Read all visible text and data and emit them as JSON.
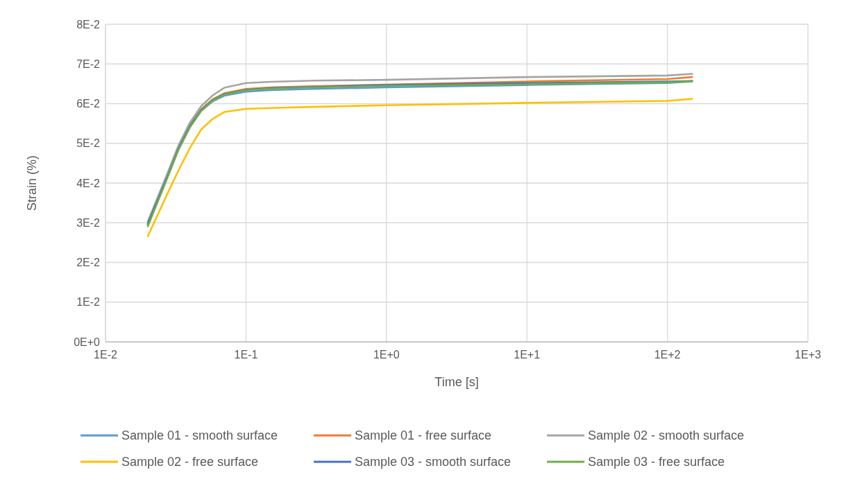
{
  "chart_data": {
    "type": "line",
    "xlabel": "Time [s]",
    "ylabel": "Strain (%)",
    "log": "x",
    "x": [
      0.02,
      0.028,
      0.033,
      0.04,
      0.048,
      0.058,
      0.07,
      0.1,
      0.15,
      0.3,
      1,
      10,
      100,
      150
    ],
    "series": [
      {
        "name": "Sample 01 - smooth surface",
        "color": "#5b9bd5",
        "values": [
          0.0295,
          0.0421,
          0.0485,
          0.0542,
          0.0582,
          0.0606,
          0.062,
          0.063,
          0.0634,
          0.0637,
          0.0641,
          0.0647,
          0.0652,
          0.0656
        ]
      },
      {
        "name": "Sample 01 - free surface",
        "color": "#ed7d31",
        "values": [
          null,
          null,
          null,
          0.0546,
          0.0586,
          0.0611,
          0.0626,
          0.0637,
          0.0641,
          0.0644,
          0.0648,
          0.0656,
          0.0662,
          0.0667
        ]
      },
      {
        "name": "Sample 02 - smooth surface",
        "color": "#a5a5a5",
        "values": [
          0.0303,
          0.043,
          0.0494,
          0.0553,
          0.0594,
          0.0621,
          0.064,
          0.0652,
          0.0655,
          0.0658,
          0.066,
          0.0667,
          0.0671,
          0.0675
        ]
      },
      {
        "name": "Sample 02 - free surface",
        "color": "#ffc000",
        "values": [
          0.0266,
          0.0378,
          0.0431,
          0.0489,
          0.0535,
          0.0562,
          0.0579,
          0.0587,
          0.0589,
          0.0592,
          0.0596,
          0.0602,
          0.0607,
          0.0612
        ]
      },
      {
        "name": "Sample 03 - smooth surface",
        "color": "#4472c4",
        "values": [
          0.0297,
          0.0422,
          0.0486,
          0.0544,
          0.0584,
          0.0609,
          0.0624,
          0.0635,
          0.0639,
          0.0642,
          0.0647,
          0.0652,
          0.0656,
          0.0657
        ]
      },
      {
        "name": "Sample 03 - free surface",
        "color": "#70ad47",
        "values": [
          0.0291,
          0.0419,
          0.0483,
          0.0541,
          0.0582,
          0.0608,
          0.0623,
          0.0634,
          0.0638,
          0.0641,
          0.0645,
          0.0649,
          0.0654,
          0.0657
        ]
      }
    ],
    "xlim": [
      0.01,
      1000
    ],
    "xticks": [
      {
        "value": 0.01,
        "label": "1E-2"
      },
      {
        "value": 0.1,
        "label": "1E-1"
      },
      {
        "value": 1,
        "label": "1E+0"
      },
      {
        "value": 10,
        "label": "1E+1"
      },
      {
        "value": 100,
        "label": "1E+2"
      },
      {
        "value": 1000,
        "label": "1E+3"
      }
    ],
    "ylim": [
      0,
      0.08
    ],
    "yticks": [
      {
        "value": 0,
        "label": "0E+0"
      },
      {
        "value": 0.01,
        "label": "1E-2"
      },
      {
        "value": 0.02,
        "label": "2E-2"
      },
      {
        "value": 0.03,
        "label": "3E-2"
      },
      {
        "value": 0.04,
        "label": "4E-2"
      },
      {
        "value": 0.05,
        "label": "5E-2"
      },
      {
        "value": 0.06,
        "label": "6E-2"
      },
      {
        "value": 0.07,
        "label": "7E-2"
      },
      {
        "value": 0.08,
        "label": "8E-2"
      }
    ],
    "grid": true,
    "legend": "bottom",
    "marker": "none",
    "line_style": "solid"
  }
}
